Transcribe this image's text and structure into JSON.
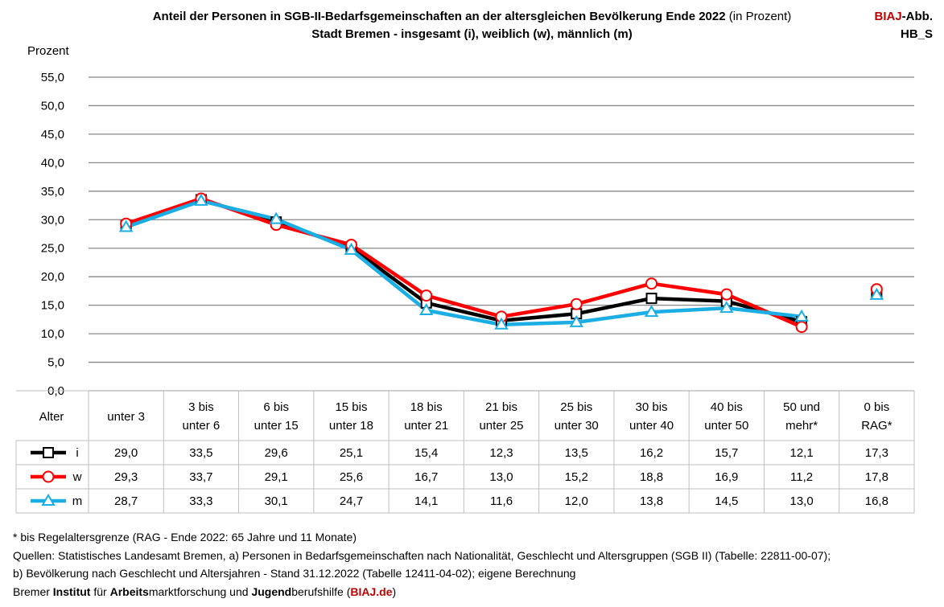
{
  "header": {
    "title_main": "Anteil der Personen in SGB-II-Bedarfsgemeinschaften an der altersgleichen Bevölkerung Ende 2022",
    "title_suffix": "(in Prozent)",
    "subtitle": "Stadt Bremen - insgesamt (i), weiblich (w), männlich (m)",
    "tag_red": "BIAJ",
    "tag_rest": "-Abb.",
    "tag_line2": "HB_S"
  },
  "chart_data": {
    "type": "line",
    "title": "Anteil der Personen in SGB-II-Bedarfsgemeinschaften an der altersgleichen Bevölkerung Ende 2022 (in Prozent)",
    "subtitle": "Stadt Bremen - insgesamt (i), weiblich (w), männlich (m)",
    "ylabel": "Prozent",
    "xlabel": "Alter",
    "ylim": [
      0,
      55
    ],
    "yticks": [
      "0,0",
      "5,0",
      "10,0",
      "15,0",
      "20,0",
      "25,0",
      "30,0",
      "35,0",
      "40,0",
      "45,0",
      "50,0",
      "55,0"
    ],
    "categories": [
      [
        "unter 3"
      ],
      [
        "3 bis",
        "unter 6"
      ],
      [
        "6 bis",
        "unter 15"
      ],
      [
        "15 bis",
        "unter 18"
      ],
      [
        "18 bis",
        "unter 21"
      ],
      [
        "21 bis",
        "unter 25"
      ],
      [
        "25 bis",
        "unter 30"
      ],
      [
        "30 bis",
        "unter 40"
      ],
      [
        "40 bis",
        "unter 50"
      ],
      [
        "50 und",
        "mehr*"
      ],
      [
        "0 bis",
        "RAG*"
      ]
    ],
    "connected_points": 10,
    "series": [
      {
        "name": "i",
        "color": "#000000",
        "marker": "square",
        "values": [
          29.0,
          33.5,
          29.6,
          25.1,
          15.4,
          12.3,
          13.5,
          16.2,
          15.7,
          12.1,
          17.3
        ],
        "labels": [
          "29,0",
          "33,5",
          "29,6",
          "25,1",
          "15,4",
          "12,3",
          "13,5",
          "16,2",
          "15,7",
          "12,1",
          "17,3"
        ]
      },
      {
        "name": "w",
        "color": "#ff0000",
        "marker": "circle",
        "values": [
          29.3,
          33.7,
          29.1,
          25.6,
          16.7,
          13.0,
          15.2,
          18.8,
          16.9,
          11.2,
          17.8
        ],
        "labels": [
          "29,3",
          "33,7",
          "29,1",
          "25,6",
          "16,7",
          "13,0",
          "15,2",
          "18,8",
          "16,9",
          "11,2",
          "17,8"
        ]
      },
      {
        "name": "m",
        "color": "#1aaee5",
        "marker": "triangle",
        "values": [
          28.7,
          33.3,
          30.1,
          24.7,
          14.1,
          11.6,
          12.0,
          13.8,
          14.5,
          13.0,
          16.8
        ],
        "labels": [
          "28,7",
          "33,3",
          "30,1",
          "24,7",
          "14,1",
          "11,6",
          "12,0",
          "13,8",
          "14,5",
          "13,0",
          "16,8"
        ]
      }
    ]
  },
  "footnotes": {
    "line1": "* bis Regelaltersgrenze (RAG - Ende 2022: 65 Jahre und 11 Monate)",
    "line2": "Quellen: Statistisches Landesamt Bremen, a) Personen in Bedarfsgemeinschaften nach Nationalität, Geschlecht und Altersgruppen (SGB II) (Tabelle: 22811-00-07);",
    "line3": "b) Bevölkerung nach Geschlecht und Altersjahren - Stand 31.12.2022 (Tabelle 12411-04-02); eigene Berechnung",
    "l4_a": "Bremer ",
    "l4_b": "Institut",
    "l4_c": " für ",
    "l4_d": "Arbeits",
    "l4_e": "marktforschung und ",
    "l4_f": "Jugend",
    "l4_g": "berufshilfe (",
    "l4_h": "BIAJ.de",
    "l4_i": ")"
  }
}
